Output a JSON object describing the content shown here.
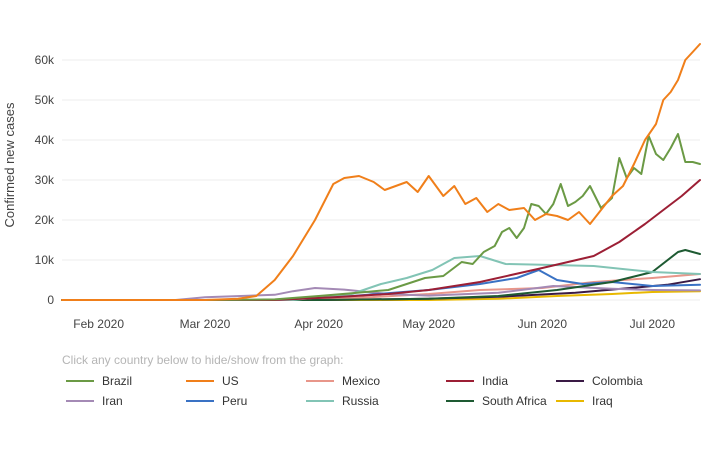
{
  "legend_hint": "Click any country below to hide/show from the graph:",
  "chart_data": {
    "type": "line",
    "title": "",
    "xlabel": "",
    "ylabel": "Confirmed new cases",
    "x_range": [
      "2020-01-22",
      "2020-07-14"
    ],
    "ylim": [
      0,
      65000
    ],
    "x_ticks": [
      {
        "date": "2020-02-01",
        "label": "Feb 2020"
      },
      {
        "date": "2020-03-01",
        "label": "Mar 2020"
      },
      {
        "date": "2020-04-01",
        "label": "Apr 2020"
      },
      {
        "date": "2020-05-01",
        "label": "May 2020"
      },
      {
        "date": "2020-06-01",
        "label": "Jun 2020"
      },
      {
        "date": "2020-07-01",
        "label": "Jul 2020"
      }
    ],
    "y_ticks": [
      {
        "value": 0,
        "label": "0"
      },
      {
        "value": 10000,
        "label": "10k"
      },
      {
        "value": 20000,
        "label": "20k"
      },
      {
        "value": 30000,
        "label": "30k"
      },
      {
        "value": 40000,
        "label": "40k"
      },
      {
        "value": 50000,
        "label": "50k"
      },
      {
        "value": 60000,
        "label": "60k"
      }
    ],
    "grid": "horizontal",
    "legend_position": "bottom",
    "series": [
      {
        "name": "Brazil",
        "color": "#6b9a45",
        "points": [
          [
            "2020-01-22",
            0
          ],
          [
            "2020-03-01",
            0
          ],
          [
            "2020-03-20",
            150
          ],
          [
            "2020-04-01",
            1000
          ],
          [
            "2020-04-10",
            1700
          ],
          [
            "2020-04-20",
            2500
          ],
          [
            "2020-04-25",
            4000
          ],
          [
            "2020-04-30",
            5500
          ],
          [
            "2020-05-05",
            6000
          ],
          [
            "2020-05-10",
            9500
          ],
          [
            "2020-05-13",
            9000
          ],
          [
            "2020-05-16",
            12000
          ],
          [
            "2020-05-19",
            13500
          ],
          [
            "2020-05-21",
            17000
          ],
          [
            "2020-05-23",
            18000
          ],
          [
            "2020-05-25",
            15500
          ],
          [
            "2020-05-27",
            18000
          ],
          [
            "2020-05-29",
            24000
          ],
          [
            "2020-05-31",
            23500
          ],
          [
            "2020-06-02",
            21500
          ],
          [
            "2020-06-04",
            24000
          ],
          [
            "2020-06-06",
            29000
          ],
          [
            "2020-06-08",
            23500
          ],
          [
            "2020-06-10",
            24500
          ],
          [
            "2020-06-12",
            26000
          ],
          [
            "2020-06-14",
            28500
          ],
          [
            "2020-06-17",
            23000
          ],
          [
            "2020-06-20",
            25500
          ],
          [
            "2020-06-22",
            35500
          ],
          [
            "2020-06-24",
            30500
          ],
          [
            "2020-06-26",
            33000
          ],
          [
            "2020-06-28",
            31500
          ],
          [
            "2020-06-30",
            41000
          ],
          [
            "2020-07-02",
            36500
          ],
          [
            "2020-07-04",
            35000
          ],
          [
            "2020-07-06",
            38000
          ],
          [
            "2020-07-08",
            41500
          ],
          [
            "2020-07-10",
            34500
          ],
          [
            "2020-07-12",
            34500
          ],
          [
            "2020-07-14",
            34000
          ]
        ]
      },
      {
        "name": "US",
        "color": "#f07f1a",
        "points": [
          [
            "2020-01-22",
            0
          ],
          [
            "2020-03-01",
            0
          ],
          [
            "2020-03-10",
            300
          ],
          [
            "2020-03-15",
            1000
          ],
          [
            "2020-03-20",
            5000
          ],
          [
            "2020-03-25",
            11000
          ],
          [
            "2020-03-31",
            20000
          ],
          [
            "2020-04-05",
            29000
          ],
          [
            "2020-04-08",
            30500
          ],
          [
            "2020-04-12",
            31000
          ],
          [
            "2020-04-16",
            29500
          ],
          [
            "2020-04-19",
            27500
          ],
          [
            "2020-04-22",
            28500
          ],
          [
            "2020-04-25",
            29500
          ],
          [
            "2020-04-28",
            27000
          ],
          [
            "2020-05-01",
            31000
          ],
          [
            "2020-05-05",
            26000
          ],
          [
            "2020-05-08",
            28500
          ],
          [
            "2020-05-11",
            24000
          ],
          [
            "2020-05-14",
            25500
          ],
          [
            "2020-05-17",
            22000
          ],
          [
            "2020-05-20",
            24000
          ],
          [
            "2020-05-23",
            22500
          ],
          [
            "2020-05-27",
            23000
          ],
          [
            "2020-05-30",
            20000
          ],
          [
            "2020-06-02",
            21500
          ],
          [
            "2020-06-05",
            21000
          ],
          [
            "2020-06-08",
            20000
          ],
          [
            "2020-06-11",
            22000
          ],
          [
            "2020-06-14",
            19000
          ],
          [
            "2020-06-17",
            22500
          ],
          [
            "2020-06-20",
            26000
          ],
          [
            "2020-06-23",
            28500
          ],
          [
            "2020-06-26",
            34000
          ],
          [
            "2020-06-29",
            40000
          ],
          [
            "2020-07-02",
            44000
          ],
          [
            "2020-07-04",
            50000
          ],
          [
            "2020-07-06",
            52000
          ],
          [
            "2020-07-08",
            55000
          ],
          [
            "2020-07-10",
            60000
          ],
          [
            "2020-07-12",
            62000
          ],
          [
            "2020-07-14",
            64000
          ]
        ]
      },
      {
        "name": "Mexico",
        "color": "#e8968a",
        "points": [
          [
            "2020-01-22",
            0
          ],
          [
            "2020-03-25",
            0
          ],
          [
            "2020-04-15",
            700
          ],
          [
            "2020-05-01",
            1500
          ],
          [
            "2020-05-15",
            2500
          ],
          [
            "2020-06-01",
            3000
          ],
          [
            "2020-06-15",
            4500
          ],
          [
            "2020-07-01",
            5500
          ],
          [
            "2020-07-14",
            6500
          ]
        ]
      },
      {
        "name": "India",
        "color": "#9c1f35",
        "points": [
          [
            "2020-01-22",
            0
          ],
          [
            "2020-03-20",
            0
          ],
          [
            "2020-04-05",
            700
          ],
          [
            "2020-04-20",
            1500
          ],
          [
            "2020-05-01",
            2500
          ],
          [
            "2020-05-15",
            4500
          ],
          [
            "2020-06-01",
            8000
          ],
          [
            "2020-06-15",
            11000
          ],
          [
            "2020-06-22",
            14500
          ],
          [
            "2020-06-29",
            19000
          ],
          [
            "2020-07-04",
            22500
          ],
          [
            "2020-07-09",
            26000
          ],
          [
            "2020-07-14",
            30000
          ]
        ]
      },
      {
        "name": "Colombia",
        "color": "#3a1a45",
        "points": [
          [
            "2020-01-22",
            0
          ],
          [
            "2020-04-01",
            0
          ],
          [
            "2020-05-01",
            300
          ],
          [
            "2020-05-20",
            800
          ],
          [
            "2020-06-10",
            1800
          ],
          [
            "2020-06-25",
            3000
          ],
          [
            "2020-07-05",
            3800
          ],
          [
            "2020-07-14",
            5200
          ]
        ]
      },
      {
        "name": "Iran",
        "color": "#a48ab5",
        "points": [
          [
            "2020-01-22",
            0
          ],
          [
            "2020-02-22",
            0
          ],
          [
            "2020-03-01",
            700
          ],
          [
            "2020-03-20",
            1300
          ],
          [
            "2020-03-25",
            2200
          ],
          [
            "2020-03-31",
            3000
          ],
          [
            "2020-04-08",
            2600
          ],
          [
            "2020-04-20",
            1500
          ],
          [
            "2020-05-01",
            1100
          ],
          [
            "2020-05-20",
            1800
          ],
          [
            "2020-06-04",
            3500
          ],
          [
            "2020-06-20",
            2800
          ],
          [
            "2020-07-01",
            2500
          ],
          [
            "2020-07-14",
            2400
          ]
        ]
      },
      {
        "name": "Peru",
        "color": "#3a72c4",
        "points": [
          [
            "2020-01-22",
            0
          ],
          [
            "2020-03-20",
            0
          ],
          [
            "2020-04-10",
            1000
          ],
          [
            "2020-05-01",
            2500
          ],
          [
            "2020-05-15",
            4000
          ],
          [
            "2020-05-25",
            5500
          ],
          [
            "2020-05-31",
            7500
          ],
          [
            "2020-06-05",
            5000
          ],
          [
            "2020-06-12",
            4000
          ],
          [
            "2020-06-20",
            4500
          ],
          [
            "2020-07-01",
            3500
          ],
          [
            "2020-07-14",
            3800
          ]
        ]
      },
      {
        "name": "Russia",
        "color": "#82c4b5",
        "points": [
          [
            "2020-01-22",
            0
          ],
          [
            "2020-03-25",
            0
          ],
          [
            "2020-04-10",
            1500
          ],
          [
            "2020-04-18",
            4000
          ],
          [
            "2020-04-25",
            5500
          ],
          [
            "2020-05-02",
            7500
          ],
          [
            "2020-05-08",
            10500
          ],
          [
            "2020-05-15",
            11000
          ],
          [
            "2020-05-22",
            9000
          ],
          [
            "2020-06-01",
            8800
          ],
          [
            "2020-06-15",
            8500
          ],
          [
            "2020-07-01",
            7000
          ],
          [
            "2020-07-14",
            6500
          ]
        ]
      },
      {
        "name": "South Africa",
        "color": "#1e5a32",
        "points": [
          [
            "2020-01-22",
            0
          ],
          [
            "2020-04-01",
            0
          ],
          [
            "2020-05-01",
            300
          ],
          [
            "2020-05-20",
            1000
          ],
          [
            "2020-06-05",
            2500
          ],
          [
            "2020-06-20",
            4500
          ],
          [
            "2020-07-01",
            7000
          ],
          [
            "2020-07-08",
            12000
          ],
          [
            "2020-07-10",
            12500
          ],
          [
            "2020-07-14",
            11500
          ]
        ]
      },
      {
        "name": "Iraq",
        "color": "#e8b800",
        "points": [
          [
            "2020-01-22",
            0
          ],
          [
            "2020-05-01",
            0
          ],
          [
            "2020-05-20",
            300
          ],
          [
            "2020-06-05",
            1000
          ],
          [
            "2020-06-20",
            1500
          ],
          [
            "2020-07-01",
            2000
          ],
          [
            "2020-07-14",
            2200
          ]
        ]
      }
    ]
  }
}
